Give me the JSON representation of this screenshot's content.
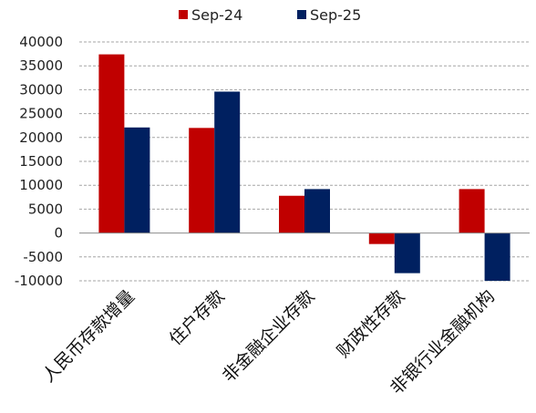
{
  "chart_data": {
    "type": "bar",
    "title": "",
    "xlabel": "",
    "ylabel": "",
    "categories": [
      "人民币存款增量",
      "住户存款",
      "非金融企业存款",
      "财政性存款",
      "非银行业金融机构"
    ],
    "series": [
      {
        "name": "Sep-24",
        "color": "#C00000",
        "values": [
          37400,
          22000,
          7800,
          -2300,
          9200
        ]
      },
      {
        "name": "Sep-25",
        "color": "#002060",
        "values": [
          22100,
          29600,
          9200,
          -8400,
          -10000
        ]
      }
    ],
    "ylim": [
      -10000,
      40000
    ],
    "yticks": [
      -10000,
      -5000,
      0,
      5000,
      10000,
      15000,
      20000,
      25000,
      30000,
      35000,
      40000
    ],
    "grid": true,
    "legend": "top-center"
  }
}
